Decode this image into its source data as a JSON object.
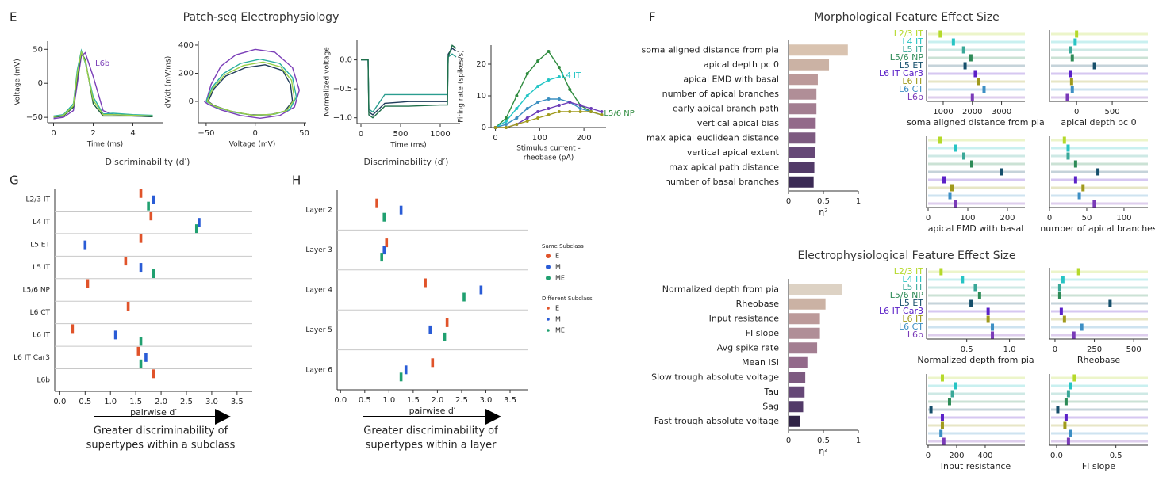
{
  "chart_data": [
    {
      "type": "line",
      "panel": "E",
      "title": "Patch-seq Electrophysiology",
      "ylabel": "Voltage (mV)",
      "xlabel": "Time (ms)",
      "annotation": "L6b",
      "annotation_color": "#7b3fb8",
      "xlim": [
        -0.3,
        5.5
      ],
      "ylim": [
        -58,
        62
      ],
      "xticks": [
        0,
        2,
        4
      ],
      "yticks": [
        {
          "value": -50,
          "label": "−50"
        },
        0,
        50
      ],
      "x": [
        0,
        0.5,
        1,
        1.2,
        1.4,
        1.6,
        2,
        2.5,
        3,
        4,
        5
      ],
      "series": [
        {
          "color": "#7b3fb8",
          "values": [
            -52,
            -50,
            -40,
            0,
            40,
            45,
            10,
            -40,
            -46,
            -48,
            -49
          ]
        },
        {
          "color": "#2ab0a0",
          "values": [
            -48,
            -46,
            -30,
            20,
            48,
            30,
            -20,
            -45,
            -44,
            -46,
            -47
          ]
        },
        {
          "color": "#1f5f3f",
          "values": [
            -50,
            -48,
            -35,
            10,
            45,
            35,
            -30,
            -48,
            -48,
            -48,
            -49
          ]
        },
        {
          "color": "#9bd04a",
          "values": [
            -49,
            -47,
            -33,
            15,
            46,
            32,
            -25,
            -46,
            -46,
            -47,
            -48
          ]
        }
      ]
    },
    {
      "type": "line",
      "ylabel": "dV/dt (mV/ms)",
      "xlabel": "Voltage (mV)",
      "xlim": [
        -58,
        52
      ],
      "ylim": [
        -152,
        428
      ],
      "xticks": [
        {
          "value": -50,
          "label": "−50"
        },
        0,
        50
      ],
      "yticks": [
        0,
        200,
        400
      ],
      "series": [
        {
          "color": "#7b3fb8",
          "x": [
            -50,
            -45,
            -35,
            -20,
            0,
            20,
            38,
            45,
            40,
            25,
            5,
            -15,
            -35,
            -48,
            -52
          ],
          "values": [
            0,
            120,
            250,
            330,
            370,
            350,
            240,
            80,
            -40,
            -100,
            -120,
            -100,
            -60,
            -20,
            0
          ]
        },
        {
          "color": "#2ab0a0",
          "x": [
            -50,
            -44,
            -32,
            -15,
            5,
            25,
            38,
            42,
            35,
            20,
            0,
            -20,
            -40,
            -50
          ],
          "values": [
            0,
            100,
            200,
            270,
            300,
            270,
            170,
            30,
            -60,
            -90,
            -100,
            -80,
            -40,
            0
          ]
        },
        {
          "color": "#1f3b5a",
          "x": [
            -48,
            -42,
            -30,
            -10,
            10,
            28,
            36,
            38,
            30,
            15,
            -5,
            -25,
            -42,
            -48
          ],
          "values": [
            0,
            90,
            180,
            240,
            260,
            220,
            120,
            0,
            -70,
            -95,
            -95,
            -70,
            -30,
            0
          ]
        },
        {
          "color": "#9bd04a",
          "x": [
            -49,
            -43,
            -31,
            -12,
            8,
            26,
            37,
            40,
            32,
            18,
            -2,
            -22,
            -41,
            -49
          ],
          "values": [
            0,
            95,
            190,
            255,
            280,
            245,
            150,
            15,
            -65,
            -92,
            -98,
            -75,
            -35,
            0
          ]
        }
      ]
    },
    {
      "type": "line",
      "ylabel": "Normalized voltage",
      "xlabel": "Time (ms)",
      "xlim": [
        -50,
        1250
      ],
      "ylim": [
        -1.1,
        0.35
      ],
      "xticks": [
        0,
        500,
        1000
      ],
      "yticks": [
        {
          "value": -1,
          "label": "−1.0"
        },
        {
          "value": -0.5,
          "label": "−0.5"
        },
        {
          "value": 0,
          "label": "0.0"
        }
      ],
      "x": [
        0,
        90,
        100,
        150,
        300,
        600,
        1000,
        1090,
        1100,
        1150,
        1200
      ],
      "series": [
        {
          "color": "#1f3b5a",
          "values": [
            0,
            0,
            -0.9,
            -0.95,
            -0.75,
            -0.72,
            -0.72,
            -0.72,
            0.1,
            0.2,
            0.15
          ]
        },
        {
          "color": "#2a9d8f",
          "values": [
            0,
            0,
            -0.85,
            -0.9,
            -0.6,
            -0.6,
            -0.6,
            -0.6,
            0.05,
            0.1,
            0.05
          ]
        },
        {
          "color": "#1f6f4a",
          "values": [
            0,
            0,
            -0.95,
            -1,
            -0.8,
            -0.8,
            -0.78,
            -0.78,
            0.05,
            0.25,
            0.2
          ]
        }
      ]
    },
    {
      "type": "line",
      "ylabel": "Firing rate (spikes/s)",
      "xlabel": [
        "Stimulus current -",
        "rheobase (pA)"
      ],
      "markers": true,
      "xlim": [
        -10,
        250
      ],
      "ylim": [
        0,
        26
      ],
      "xticks": [
        0,
        100,
        200
      ],
      "yticks": [
        0,
        10,
        20
      ],
      "x": [
        0,
        24,
        48,
        72,
        96,
        120,
        144,
        168,
        192,
        216,
        240
      ],
      "series": [
        {
          "name": "L5/6 NP",
          "color": "#2e8b3e",
          "values": [
            0,
            3,
            10,
            17,
            21,
            24,
            19,
            12,
            7,
            5,
            4
          ]
        },
        {
          "name": "L4 IT",
          "color": "#22c5c5",
          "values": [
            0,
            2,
            6,
            10,
            13,
            15,
            16,
            null,
            null,
            null,
            null
          ]
        },
        {
          "color": "#3a8fc0",
          "values": [
            0,
            1,
            3,
            6,
            8,
            9,
            9,
            8,
            6,
            5,
            4
          ]
        },
        {
          "color": "#6a3ab8",
          "values": [
            0,
            0,
            1,
            3,
            5,
            6,
            7,
            8,
            7,
            6,
            5
          ]
        },
        {
          "color": "#a09a1c",
          "values": [
            0,
            0,
            1,
            2,
            3,
            4,
            5,
            5,
            5,
            5,
            4
          ]
        }
      ]
    },
    {
      "type": "barh",
      "panel": "F",
      "title": "Morphological Feature Effect Size",
      "xlabel": "η²",
      "xlim": [
        0,
        1
      ],
      "xticks": [
        0,
        0.5,
        1
      ],
      "categories": [
        "soma aligned distance from pia",
        "apical depth pc 0",
        "apical EMD with basal",
        "number of apical branches",
        "early apical branch path",
        "vertical apical bias",
        "max apical euclidean distance",
        "vertical apical extent",
        "max apical path distance",
        "number of basal branches"
      ],
      "values": [
        0.85,
        0.58,
        0.42,
        0.4,
        0.4,
        0.39,
        0.39,
        0.38,
        0.37,
        0.36
      ],
      "colors": [
        "#d9c3b0",
        "#cbb2a4",
        "#bc9a9a",
        "#b08e97",
        "#a37e91",
        "#93698a",
        "#7d5a80",
        "#664877",
        "#523a68",
        "#3b2a55"
      ]
    },
    {
      "type": "strip",
      "categories": [
        "L2/3 IT",
        "L4 IT",
        "L5 IT",
        "L5/6 NP",
        "L5 ET",
        "L6 IT Car3",
        "L6 IT",
        "L6 CT",
        "L6b"
      ],
      "colors": [
        "#b5d92a",
        "#27c4c4",
        "#3aa898",
        "#2e8b57",
        "#164f6b",
        "#5b21c8",
        "#a09a1c",
        "#3d8fc4",
        "#7a3ab8"
      ],
      "panels": [
        {
          "xlabel": "soma aligned distance from pia",
          "xlim": [
            430,
            3800
          ],
          "xticks": [
            1000,
            2000,
            3000
          ],
          "values": [
            900,
            1350,
            1700,
            1950,
            1750,
            2100,
            2200,
            2400,
            2000
          ]
        },
        {
          "xlabel": "apical depth pc 0",
          "xlim": [
            -380,
            1000
          ],
          "xticks": [
            0,
            500
          ],
          "values": [
            0,
            -20,
            -80,
            -60,
            250,
            -90,
            -70,
            -60,
            -130
          ]
        },
        {
          "xlabel": "apical EMD with basal",
          "xlim": [
            -4,
            244
          ],
          "xticks": [
            0,
            100,
            200
          ],
          "values": [
            30,
            70,
            90,
            110,
            185,
            40,
            60,
            55,
            70
          ]
        },
        {
          "xlabel": "number of apical branches",
          "xlim": [
            0,
            132
          ],
          "xticks": [
            0,
            50,
            100
          ],
          "values": [
            20,
            25,
            25,
            35,
            65,
            35,
            45,
            40,
            60
          ]
        }
      ]
    },
    {
      "type": "barh",
      "title": "Electrophysiological Feature Effect Size",
      "xlabel": "η²",
      "xlim": [
        0,
        1
      ],
      "xticks": [
        0,
        0.5,
        1
      ],
      "categories": [
        "Normalized depth from pia",
        "Rheobase",
        "Input resistance",
        "FI slope",
        "Avg spike rate",
        "Mean ISI",
        "Slow trough absolute voltage",
        "Tau",
        "Sag",
        "Fast trough absolute voltage"
      ],
      "values": [
        0.77,
        0.53,
        0.45,
        0.45,
        0.41,
        0.27,
        0.24,
        0.23,
        0.21,
        0.16
      ],
      "colors": [
        "#ddd2c4",
        "#cbb2a4",
        "#bc9a9a",
        "#b08e97",
        "#a37e91",
        "#93698a",
        "#7d5a80",
        "#664877",
        "#523a68",
        "#2f2245"
      ]
    },
    {
      "type": "strip",
      "categories": [
        "L2/3 IT",
        "L4 IT",
        "L5 IT",
        "L5/6 NP",
        "L5 ET",
        "L6 IT Car3",
        "L6 IT",
        "L6 CT",
        "L6b"
      ],
      "colors": [
        "#b5d92a",
        "#27c4c4",
        "#3aa898",
        "#2e8b57",
        "#164f6b",
        "#5b21c8",
        "#a09a1c",
        "#3d8fc4",
        "#7a3ab8"
      ],
      "panels": [
        {
          "xlabel": "Normalized depth from pia",
          "xlim": [
            0.03,
            1.18
          ],
          "xticks": [
            0.5,
            {
              "value": 1,
              "label": "1.0"
            }
          ],
          "values": [
            0.2,
            0.45,
            0.6,
            0.65,
            0.55,
            0.75,
            0.75,
            0.8,
            0.8
          ]
        },
        {
          "xlabel": "Rheobase",
          "xlim": [
            -35,
            590
          ],
          "xticks": [
            0,
            250,
            500
          ],
          "values": [
            150,
            50,
            30,
            30,
            350,
            40,
            60,
            170,
            120
          ]
        },
        {
          "xlabel": "Input resistance",
          "xlim": [
            -11,
            678
          ],
          "xticks": [
            0,
            200,
            400
          ],
          "values": [
            100,
            190,
            170,
            150,
            20,
            100,
            100,
            90,
            110
          ]
        },
        {
          "xlabel": "FI slope",
          "xlim": [
            -0.06,
            0.77
          ],
          "xticks": [
            {
              "value": 0,
              "label": "0.0"
            },
            0.5
          ],
          "values": [
            0.15,
            0.12,
            0.1,
            0.08,
            0.01,
            0.08,
            0.07,
            0.12,
            0.1
          ]
        }
      ]
    },
    {
      "type": "dstrip",
      "panel": "G",
      "title": "Discriminability (d′)",
      "xlabel": "pairwise d′",
      "xlim": [
        -0.1,
        3.8
      ],
      "xticks": [
        {
          "value": 0,
          "label": "0.0"
        },
        0.5,
        {
          "value": 1,
          "label": "1.0"
        },
        1.5,
        {
          "value": 2,
          "label": "2.0"
        },
        2.5,
        {
          "value": 3,
          "label": "3.0"
        },
        3.5
      ],
      "categories": [
        "L2/3 IT",
        "L4 IT",
        "L5 ET",
        "L5 IT",
        "L5/6 NP",
        "L6 CT",
        "L6 IT",
        "L6 IT Car3",
        "L6b"
      ],
      "series": [
        {
          "color": "#e0532a",
          "values": [
            1.6,
            1.8,
            1.6,
            1.3,
            0.55,
            1.35,
            0.25,
            1.55,
            1.85
          ]
        },
        {
          "color": "#2a5cd6",
          "values": [
            1.85,
            2.75,
            0.5,
            1.6,
            null,
            null,
            1.1,
            1.7,
            null
          ]
        },
        {
          "color": "#20a070",
          "values": [
            1.75,
            2.7,
            null,
            1.85,
            null,
            null,
            1.6,
            1.6,
            null
          ]
        }
      ],
      "arrow_text": [
        "Greater discriminability of",
        "supertypes within a subclass"
      ]
    },
    {
      "type": "dstrip",
      "panel": "H",
      "title": "Discriminability (d′)",
      "xlabel": "pairwise d′",
      "xlim": [
        -0.07,
        3.86
      ],
      "xticks": [
        {
          "value": 0,
          "label": "0.0"
        },
        0.5,
        {
          "value": 1,
          "label": "1.0"
        },
        1.5,
        {
          "value": 2,
          "label": "2.0"
        },
        2.5,
        {
          "value": 3,
          "label": "3.0"
        },
        3.5
      ],
      "categories": [
        "Layer 2",
        "Layer 3",
        "Layer 4",
        "Layer 5",
        "Layer 6"
      ],
      "series": [
        {
          "color": "#e0532a",
          "values": [
            0.75,
            0.95,
            1.75,
            2.2,
            1.9
          ]
        },
        {
          "color": "#2a5cd6",
          "values": [
            1.25,
            0.9,
            2.9,
            1.85,
            1.35
          ]
        },
        {
          "color": "#20a070",
          "values": [
            0.9,
            0.85,
            2.55,
            2.15,
            1.25
          ]
        }
      ],
      "legend_groups": [
        {
          "title": "Same Subclass",
          "labels": [
            "E",
            "M",
            "ME"
          ]
        },
        {
          "title": "Different Subclass",
          "labels": [
            "E",
            "M",
            "ME"
          ]
        }
      ],
      "arrow_text": [
        "Greater discriminability of",
        "supertypes within a layer"
      ]
    }
  ]
}
